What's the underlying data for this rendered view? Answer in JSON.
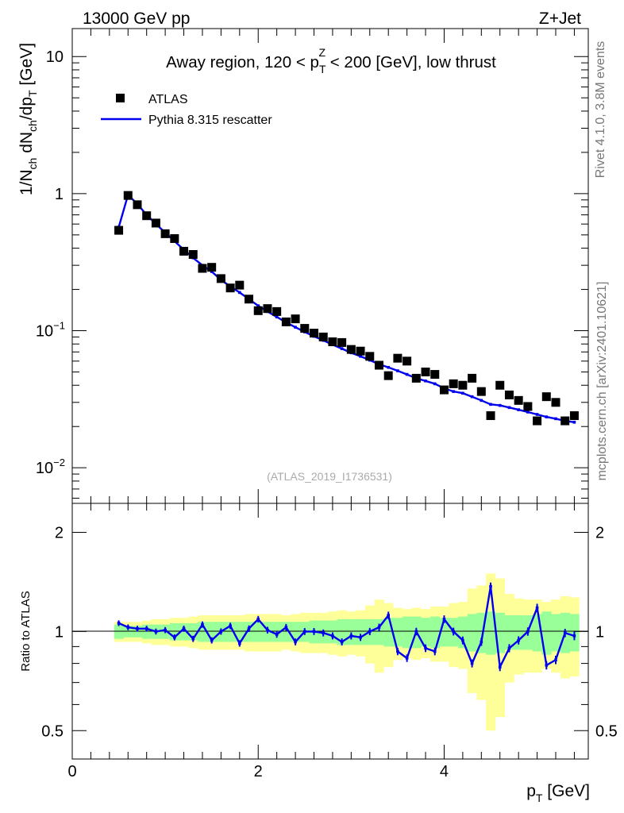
{
  "header": {
    "energy": "13000 GeV pp",
    "process": "Z+Jet"
  },
  "side": {
    "rivet": "Rivet 4.1.0,  3.8M events",
    "source": "mcplots.cern.ch [arXiv:2401.10621]"
  },
  "chart_data": [
    {
      "type": "scatter",
      "panel": "main",
      "title_pre": "Away region, 120 < p",
      "title_sup": "Z",
      "title_sub": "T",
      "title_post": " < 200 [GeV], low thrust",
      "ylabel": "1/N_ch dN_ch/dp_T [GeV]",
      "yscale": "log",
      "ylim": [
        0.0055,
        16
      ],
      "xlim": [
        0,
        5.55
      ],
      "yticks": [
        {
          "v": 10,
          "label": "10",
          "sup": ""
        },
        {
          "v": 1,
          "label": "1",
          "sup": ""
        },
        {
          "v": 0.1,
          "label": "10",
          "sup": "−1"
        },
        {
          "v": 0.01,
          "label": "10",
          "sup": "−2"
        }
      ],
      "legend": {
        "data": "ATLAS",
        "mc": "Pythia 8.315 rescatter"
      },
      "watermark": "(ATLAS_2019_I1736531)",
      "x": [
        0.5,
        0.6,
        0.7,
        0.8,
        0.9,
        1.0,
        1.1,
        1.2,
        1.3,
        1.4,
        1.5,
        1.6,
        1.7,
        1.8,
        1.9,
        2.0,
        2.1,
        2.2,
        2.3,
        2.4,
        2.5,
        2.6,
        2.7,
        2.8,
        2.9,
        3.0,
        3.1,
        3.2,
        3.3,
        3.4,
        3.5,
        3.6,
        3.7,
        3.8,
        3.9,
        4.0,
        4.1,
        4.2,
        4.3,
        4.4,
        4.5,
        4.6,
        4.7,
        4.8,
        4.9,
        5.0,
        5.1,
        5.2,
        5.3,
        5.4
      ],
      "series": [
        {
          "name": "ATLAS",
          "values": [
            0.54,
            0.97,
            0.83,
            0.69,
            0.61,
            0.51,
            0.47,
            0.38,
            0.36,
            0.285,
            0.29,
            0.24,
            0.205,
            0.215,
            0.17,
            0.14,
            0.145,
            0.138,
            0.116,
            0.122,
            0.104,
            0.096,
            0.09,
            0.083,
            0.082,
            0.073,
            0.071,
            0.065,
            0.056,
            0.047,
            0.063,
            0.06,
            0.045,
            0.05,
            0.048,
            0.037,
            0.041,
            0.04,
            0.045,
            0.036,
            0.024,
            0.04,
            0.034,
            0.031,
            0.028,
            0.022,
            0.033,
            0.03,
            0.022,
            0.024
          ]
        },
        {
          "name": "Pythia 8.315 rescatter",
          "values": [
            0.57,
            0.98,
            0.84,
            0.7,
            0.6,
            0.52,
            0.45,
            0.39,
            0.34,
            0.3,
            0.27,
            0.235,
            0.21,
            0.19,
            0.17,
            0.152,
            0.138,
            0.126,
            0.115,
            0.106,
            0.098,
            0.091,
            0.085,
            0.079,
            0.074,
            0.069,
            0.065,
            0.061,
            0.057,
            0.054,
            0.051,
            0.048,
            0.045,
            0.043,
            0.041,
            0.038,
            0.036,
            0.035,
            0.033,
            0.031,
            0.029,
            0.0285,
            0.0275,
            0.0265,
            0.0255,
            0.0245,
            0.0235,
            0.0228,
            0.022,
            0.0215
          ]
        }
      ]
    },
    {
      "type": "line",
      "panel": "ratio",
      "ylabel": "Ratio to ATLAS",
      "xlabel_main": "p",
      "xlabel_sub": "T",
      "xlabel_unit": " [GeV]",
      "yscale": "log",
      "ylim": [
        0.41,
        2.45
      ],
      "xlim": [
        0,
        5.55
      ],
      "xticks": [
        0,
        2,
        4
      ],
      "yticks": [
        {
          "v": 0.5,
          "label": "0.5"
        },
        {
          "v": 1,
          "label": "1"
        },
        {
          "v": 2,
          "label": "2"
        }
      ],
      "x": [
        0.5,
        0.6,
        0.7,
        0.8,
        0.9,
        1.0,
        1.1,
        1.2,
        1.3,
        1.4,
        1.5,
        1.6,
        1.7,
        1.8,
        1.9,
        2.0,
        2.1,
        2.2,
        2.3,
        2.4,
        2.5,
        2.6,
        2.7,
        2.8,
        2.9,
        3.0,
        3.1,
        3.2,
        3.3,
        3.4,
        3.5,
        3.6,
        3.7,
        3.8,
        3.9,
        4.0,
        4.1,
        4.2,
        4.3,
        4.4,
        4.5,
        4.6,
        4.7,
        4.8,
        4.9,
        5.0,
        5.1,
        5.2,
        5.3,
        5.4
      ],
      "ratio": [
        1.06,
        1.03,
        1.02,
        1.02,
        1.0,
        1.01,
        0.96,
        1.02,
        0.95,
        1.05,
        0.94,
        1.0,
        1.04,
        0.92,
        1.02,
        1.09,
        1.01,
        0.98,
        1.03,
        0.93,
        1.0,
        1.0,
        0.99,
        0.97,
        0.93,
        0.97,
        0.96,
        1.0,
        1.03,
        1.12,
        0.87,
        0.83,
        1.0,
        0.89,
        0.87,
        1.09,
        1.0,
        0.94,
        0.8,
        0.93,
        1.37,
        0.78,
        0.89,
        0.94,
        1.0,
        1.18,
        0.79,
        0.82,
        0.99,
        0.97
      ],
      "band_stat": [
        0.05,
        0.04,
        0.04,
        0.05,
        0.05,
        0.05,
        0.06,
        0.06,
        0.06,
        0.07,
        0.07,
        0.07,
        0.07,
        0.07,
        0.07,
        0.07,
        0.07,
        0.07,
        0.07,
        0.07,
        0.07,
        0.08,
        0.08,
        0.08,
        0.09,
        0.09,
        0.09,
        0.09,
        0.09,
        0.1,
        0.1,
        0.11,
        0.11,
        0.1,
        0.11,
        0.1,
        0.1,
        0.11,
        0.13,
        0.14,
        0.15,
        0.14,
        0.12,
        0.12,
        0.12,
        0.13,
        0.15,
        0.13,
        0.14,
        0.13
      ],
      "band_tot": [
        0.07,
        0.07,
        0.07,
        0.08,
        0.09,
        0.09,
        0.1,
        0.1,
        0.11,
        0.12,
        0.12,
        0.12,
        0.12,
        0.12,
        0.13,
        0.13,
        0.13,
        0.13,
        0.12,
        0.13,
        0.14,
        0.14,
        0.14,
        0.15,
        0.16,
        0.15,
        0.16,
        0.2,
        0.25,
        0.22,
        0.18,
        0.17,
        0.18,
        0.17,
        0.19,
        0.19,
        0.22,
        0.23,
        0.35,
        0.38,
        0.5,
        0.45,
        0.3,
        0.26,
        0.25,
        0.25,
        0.23,
        0.25,
        0.28,
        0.27
      ]
    }
  ]
}
